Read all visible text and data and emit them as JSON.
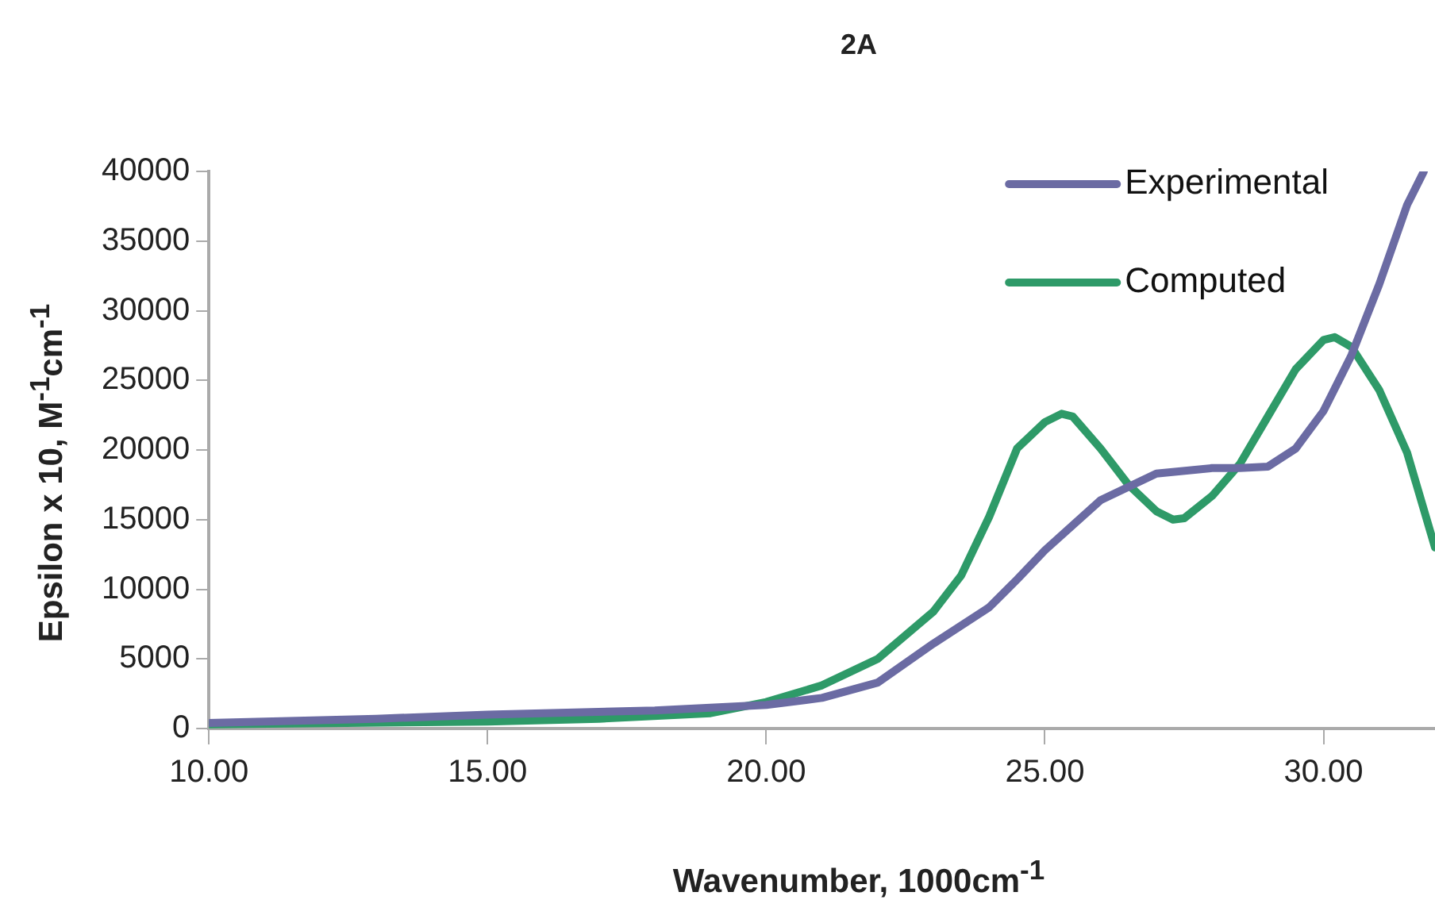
{
  "chart_data": {
    "type": "line",
    "title": "2A",
    "xlabel": "Wavenumber, 1000cm$^{-1}$",
    "ylabel": "Epsilon x 10, M$^{-1}$cm$^{-1}$",
    "xlim": [
      10,
      32
    ],
    "xticks": [
      {
        "value": 10,
        "label": "10.00"
      },
      {
        "value": 15,
        "label": "15.00"
      },
      {
        "value": 20,
        "label": "20.00"
      },
      {
        "value": 25,
        "label": "25.00"
      },
      {
        "value": 30,
        "label": "30.00"
      }
    ],
    "ylim": [
      0,
      40000
    ],
    "yticks": [
      0,
      5000,
      10000,
      15000,
      20000,
      25000,
      30000,
      35000,
      40000
    ],
    "grid": false,
    "legend": "top right",
    "marker": "none",
    "line_style": "solid",
    "series": [
      {
        "name": "Experimental",
        "color": "#6b6ba3",
        "x": [
          10,
          13,
          15,
          18,
          20,
          21,
          22,
          23,
          24,
          24.5,
          25,
          26,
          27,
          28,
          28.5,
          29,
          29.5,
          30,
          30.5,
          31,
          31.5,
          31.8
        ],
        "values": [
          400,
          700,
          1000,
          1300,
          1700,
          2200,
          3300,
          6100,
          8700,
          10700,
          12800,
          16400,
          18300,
          18700,
          18700,
          18800,
          20100,
          22800,
          26800,
          31900,
          37600,
          40000
        ]
      },
      {
        "name": "Computed",
        "color": "#2e9a68",
        "x": [
          10,
          15,
          17,
          19,
          20,
          21,
          22,
          23,
          23.5,
          24,
          24.5,
          25,
          25.3,
          25.5,
          26,
          26.5,
          27,
          27.3,
          27.5,
          28,
          28.5,
          29,
          29.5,
          30,
          30.2,
          30.5,
          31,
          31.5,
          32
        ],
        "values": [
          300,
          500,
          700,
          1100,
          1900,
          3100,
          5000,
          8400,
          11000,
          15200,
          20100,
          22000,
          22600,
          22400,
          20100,
          17500,
          15600,
          15000,
          15100,
          16700,
          19000,
          22400,
          25800,
          27900,
          28100,
          27400,
          24300,
          19800,
          13000
        ]
      }
    ]
  }
}
